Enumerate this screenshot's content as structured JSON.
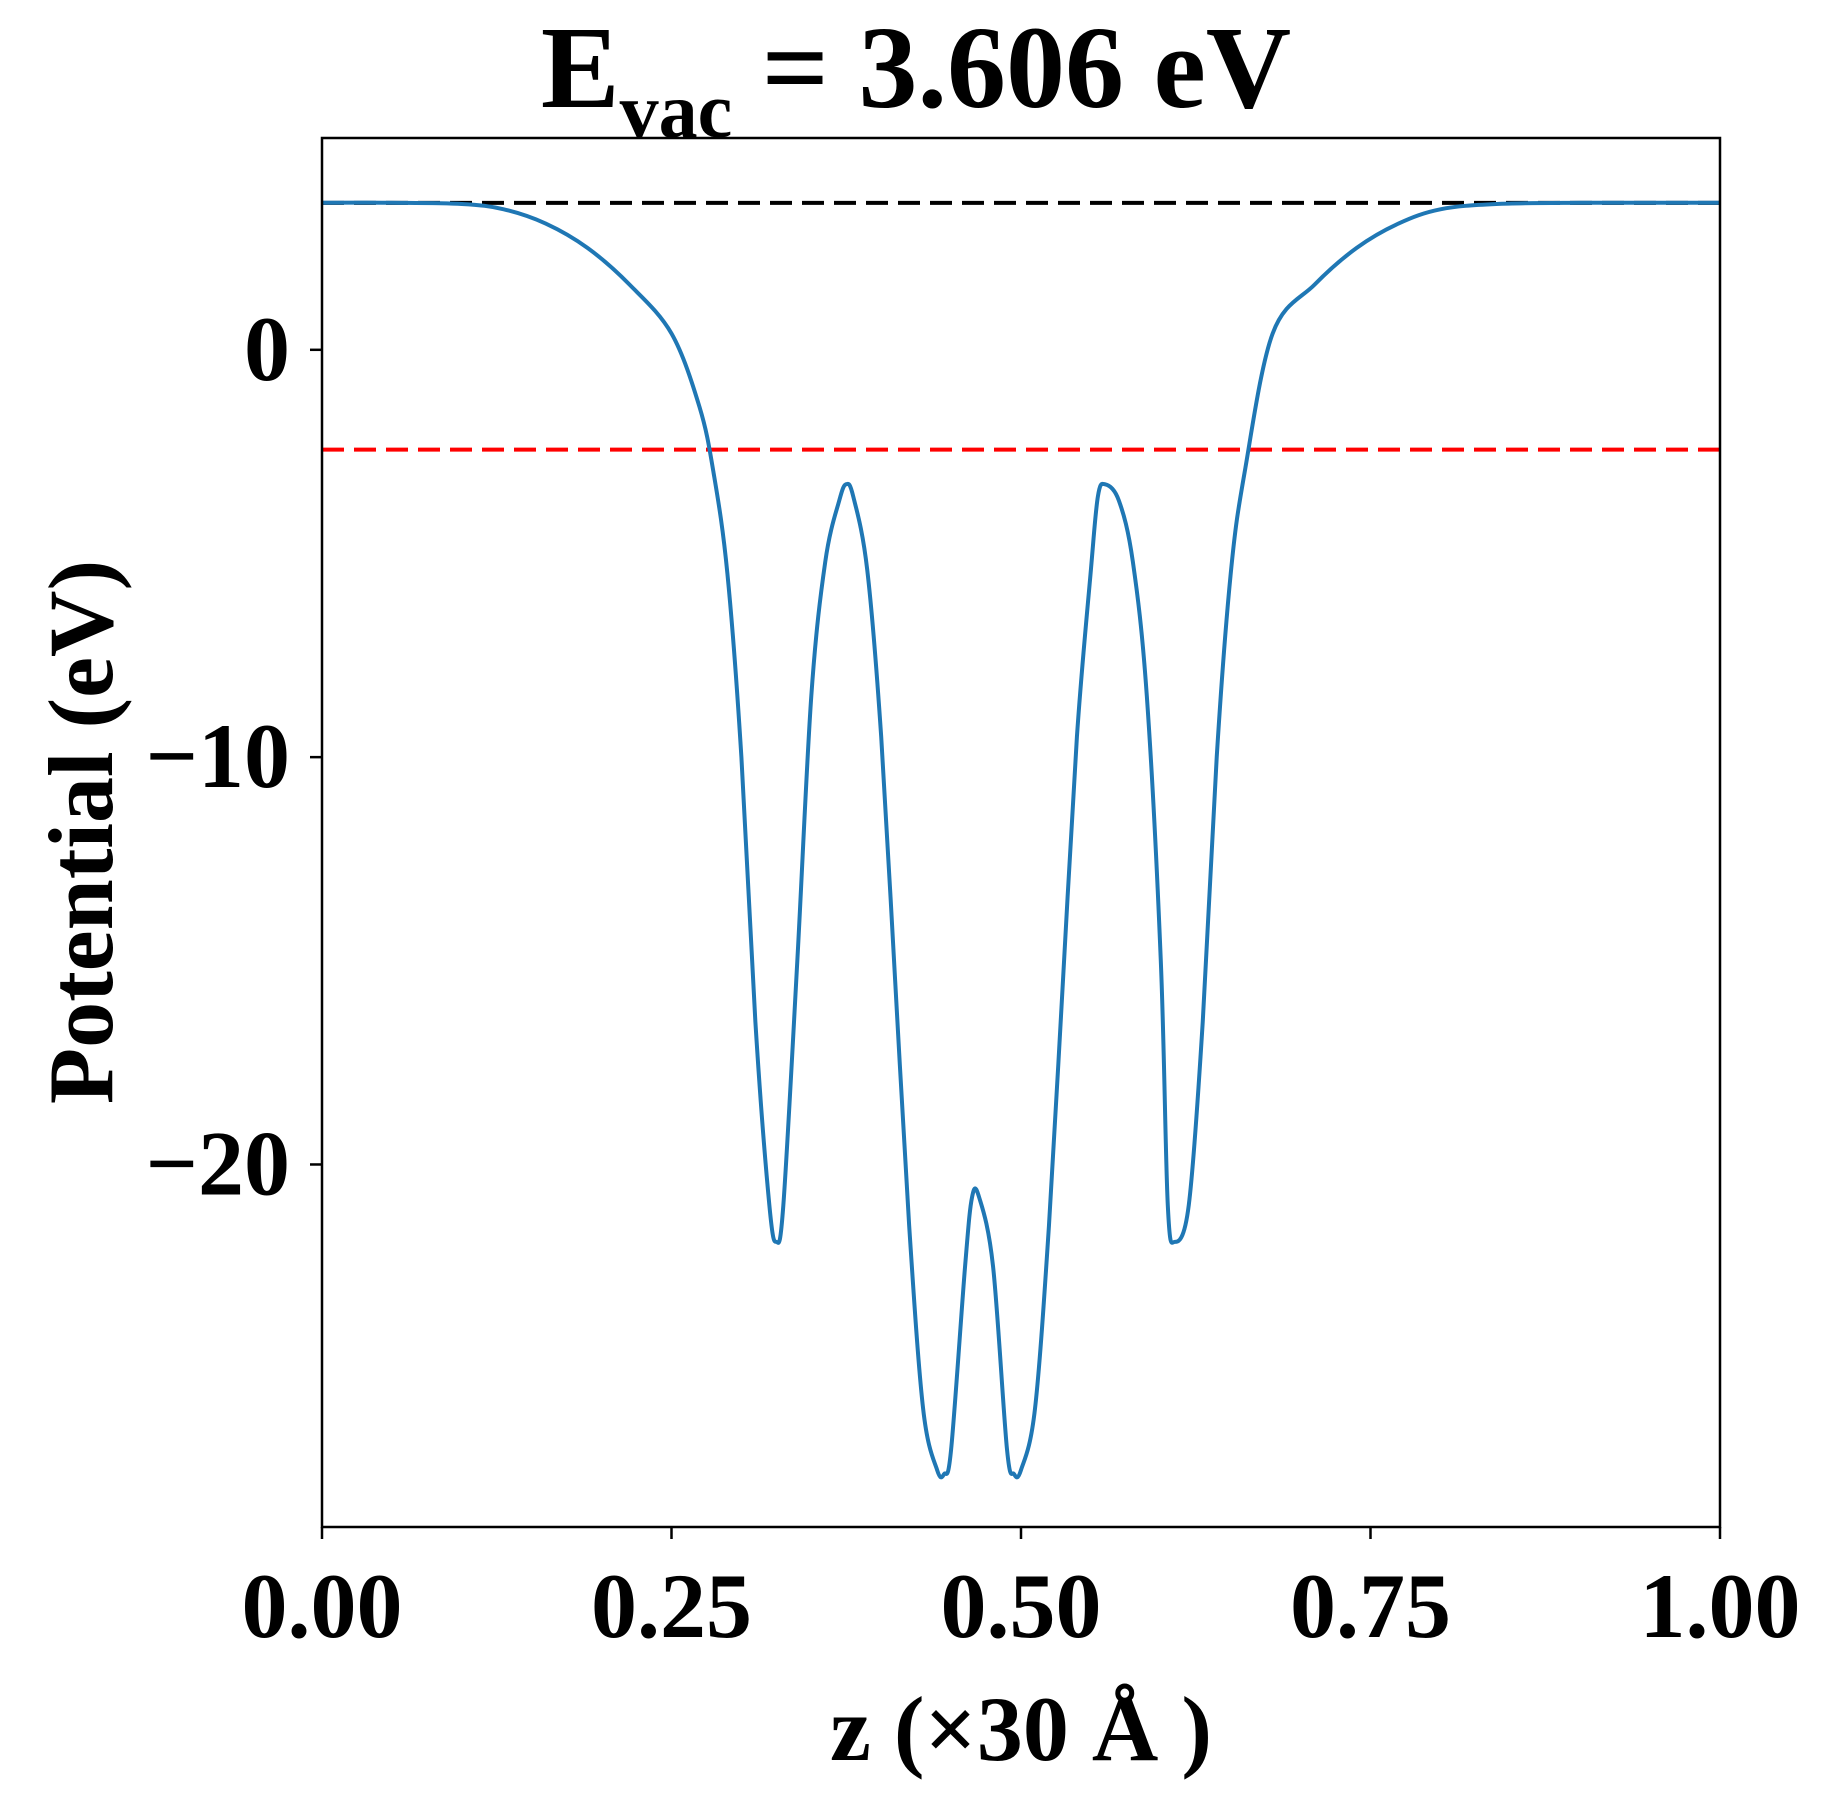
{
  "chart_data": {
    "type": "line",
    "title": {
      "main": "E",
      "subscript": "vac",
      "rest": " = 3.606 eV"
    },
    "xlabel": "z (×30 Å )",
    "ylabel": "Potential (eV)",
    "xlim": [
      0.0,
      1.0
    ],
    "ylim": [
      -28.9,
      5.2
    ],
    "xticks": [
      0.0,
      0.25,
      0.5,
      0.75,
      1.0
    ],
    "xtick_labels": [
      "0.00",
      "0.25",
      "0.50",
      "0.75",
      "1.00"
    ],
    "yticks": [
      0,
      -10,
      -20
    ],
    "ytick_labels": [
      "0",
      "−10",
      "−20"
    ],
    "grid": false,
    "legend": "none",
    "series": [
      {
        "color": "#1f77b4",
        "style": "solid",
        "x": [
          0.0,
          0.05,
          0.1,
          0.13,
          0.16,
          0.19,
          0.22,
          0.25,
          0.27,
          0.28,
          0.29,
          0.3,
          0.31,
          0.32,
          0.325,
          0.33,
          0.34,
          0.35,
          0.36,
          0.37,
          0.375,
          0.38,
          0.39,
          0.4,
          0.41,
          0.42,
          0.43,
          0.44,
          0.445,
          0.45,
          0.46,
          0.465,
          0.47,
          0.48,
          0.49,
          0.495,
          0.5,
          0.51,
          0.52,
          0.53,
          0.54,
          0.55,
          0.555,
          0.56,
          0.57,
          0.58,
          0.59,
          0.6,
          0.605,
          0.61,
          0.62,
          0.63,
          0.64,
          0.65,
          0.66,
          0.68,
          0.71,
          0.74,
          0.77,
          0.8,
          0.84,
          0.9,
          0.95,
          1.0
        ],
        "y": [
          3.61,
          3.61,
          3.58,
          3.45,
          3.1,
          2.5,
          1.6,
          0.4,
          -1.4,
          -3.0,
          -5.5,
          -10.0,
          -16.5,
          -21.0,
          -21.9,
          -21.0,
          -15.0,
          -8.5,
          -5.2,
          -3.7,
          -3.3,
          -3.6,
          -5.4,
          -9.5,
          -15.5,
          -21.5,
          -26.0,
          -27.5,
          -27.6,
          -27.0,
          -22.5,
          -20.8,
          -20.8,
          -22.5,
          -27.0,
          -27.6,
          -27.5,
          -26.0,
          -21.5,
          -15.5,
          -9.5,
          -5.4,
          -3.6,
          -3.3,
          -3.7,
          -5.2,
          -8.5,
          -15.0,
          -21.0,
          -21.9,
          -21.0,
          -16.5,
          -10.0,
          -5.5,
          -3.0,
          0.4,
          1.6,
          2.5,
          3.1,
          3.45,
          3.58,
          3.61,
          3.61,
          3.61
        ]
      }
    ],
    "reference_lines": [
      {
        "y": 3.606,
        "color": "#000000",
        "style": "dashed"
      },
      {
        "y": -2.45,
        "color": "#ff0000",
        "style": "dashed"
      }
    ]
  }
}
